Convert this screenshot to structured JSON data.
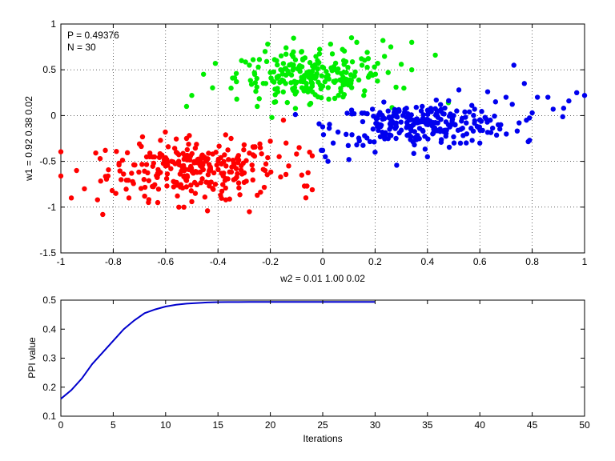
{
  "chart_data": [
    {
      "type": "scatter",
      "annotations": [
        "P = 0.49376",
        "N = 30"
      ],
      "xlabel": "w2 = 0.01  1.00  0.02",
      "ylabel": "w1 = 0.92  0.38  0.02",
      "xlim": [
        -1,
        1
      ],
      "ylim": [
        -1.5,
        1
      ],
      "xticks": [
        "-1",
        "-0.8",
        "-0.6",
        "-0.4",
        "-0.2",
        "0",
        "0.2",
        "0.4",
        "0.6",
        "0.8",
        "1"
      ],
      "yticks": [
        "-1.5",
        "-1",
        "-0.5",
        "0",
        "0.5",
        "1"
      ],
      "grid": true,
      "series": [
        {
          "color": "#ff0000",
          "center": [
            -0.5,
            -0.58
          ],
          "spread": [
            0.16,
            0.16
          ],
          "n": 230,
          "points": [
            [
              -1.0,
              -0.66
            ],
            [
              -0.96,
              -0.9
            ],
            [
              -0.94,
              -0.6
            ],
            [
              -0.91,
              -0.8
            ],
            [
              -0.86,
              -0.92
            ],
            [
              -0.85,
              -0.47
            ],
            [
              -0.84,
              -1.08
            ],
            [
              -0.82,
              -0.66
            ],
            [
              -0.79,
              -0.85
            ],
            [
              -0.77,
              -0.7
            ],
            [
              -0.74,
              -0.9
            ],
            [
              -0.73,
              -0.63
            ],
            [
              -0.7,
              -0.31
            ],
            [
              -0.68,
              -0.88
            ],
            [
              -0.66,
              -0.41
            ],
            [
              -0.63,
              -0.95
            ],
            [
              -0.6,
              -0.46
            ],
            [
              -0.57,
              -0.72
            ],
            [
              -0.53,
              -1.0
            ],
            [
              -0.52,
              -0.25
            ],
            [
              -0.5,
              -0.94
            ],
            [
              -0.47,
              -0.52
            ],
            [
              -0.45,
              -0.89
            ],
            [
              -0.44,
              -1.04
            ],
            [
              -0.42,
              -0.42
            ],
            [
              -0.39,
              -0.87
            ],
            [
              -0.37,
              -0.92
            ],
            [
              -0.35,
              -0.25
            ],
            [
              -0.33,
              -0.58
            ],
            [
              -0.32,
              -0.79
            ],
            [
              -0.3,
              -0.32
            ],
            [
              -0.28,
              -0.41
            ],
            [
              -0.27,
              -0.54
            ],
            [
              -0.25,
              -0.87
            ],
            [
              -0.24,
              -0.31
            ],
            [
              -0.22,
              -0.6
            ],
            [
              -0.21,
              -0.46
            ],
            [
              -0.2,
              -0.28
            ],
            [
              -0.28,
              -1.05
            ],
            [
              -0.3,
              -0.73
            ],
            [
              -0.15,
              -0.05
            ],
            [
              -0.14,
              -0.3
            ],
            [
              -0.13,
              -0.55
            ],
            [
              -0.1,
              -0.42
            ],
            [
              -0.09,
              -0.35
            ],
            [
              -0.08,
              -0.65
            ],
            [
              -0.07,
              -0.77
            ],
            [
              -0.06,
              -0.77
            ],
            [
              -0.05,
              -0.4
            ],
            [
              -0.04,
              -0.44
            ],
            [
              -0.04,
              -0.81
            ],
            [
              -0.63,
              -0.63
            ],
            [
              -0.58,
              -0.58
            ],
            [
              -0.55,
              -0.5
            ],
            [
              -0.48,
              -0.62
            ],
            [
              -0.43,
              -0.56
            ],
            [
              -0.38,
              -0.66
            ],
            [
              -0.36,
              -0.48
            ],
            [
              -0.52,
              -0.71
            ],
            [
              -0.6,
              -0.55
            ],
            [
              -0.46,
              -0.69
            ],
            [
              -0.41,
              -0.75
            ],
            [
              -0.34,
              -0.52
            ]
          ]
        },
        {
          "color": "#00ee00",
          "center": [
            -0.05,
            0.42
          ],
          "spread": [
            0.14,
            0.13
          ],
          "n": 200,
          "points": [
            [
              -0.52,
              0.1
            ],
            [
              -0.5,
              0.22
            ],
            [
              -0.41,
              0.57
            ],
            [
              -0.35,
              0.3
            ],
            [
              -0.33,
              0.46
            ],
            [
              -0.31,
              0.6
            ],
            [
              -0.28,
              0.55
            ],
            [
              -0.25,
              0.1
            ],
            [
              -0.22,
              0.7
            ],
            [
              -0.2,
              0.47
            ],
            [
              -0.18,
              0.15
            ],
            [
              -0.21,
              0.78
            ],
            [
              -0.15,
              0.38
            ],
            [
              -0.14,
              0.74
            ],
            [
              -0.12,
              0.56
            ],
            [
              -0.1,
              0.26
            ],
            [
              -0.08,
              0.7
            ],
            [
              -0.05,
              0.12
            ],
            [
              -0.04,
              0.35
            ],
            [
              0.0,
              0.32
            ],
            [
              0.03,
              0.78
            ],
            [
              0.06,
              0.22
            ],
            [
              0.08,
              0.6
            ],
            [
              0.11,
              0.85
            ],
            [
              0.13,
              0.8
            ],
            [
              0.15,
              0.55
            ],
            [
              0.17,
              0.69
            ],
            [
              0.19,
              0.44
            ],
            [
              0.21,
              0.57
            ],
            [
              0.23,
              0.82
            ],
            [
              0.26,
              0.75
            ],
            [
              0.28,
              0.31
            ],
            [
              0.31,
              0.3
            ],
            [
              0.34,
              0.5
            ],
            [
              0.34,
              0.8
            ],
            [
              0.43,
              0.66
            ],
            [
              0.48,
              0.14
            ],
            [
              0.3,
              0.56
            ],
            [
              0.25,
              0.47
            ],
            [
              0.16,
              0.27
            ],
            [
              -0.06,
              0.47
            ],
            [
              -0.09,
              0.53
            ],
            [
              0.02,
              0.44
            ],
            [
              0.05,
              0.38
            ],
            [
              -0.02,
              0.6
            ],
            [
              0.09,
              0.47
            ]
          ]
        },
        {
          "color": "#0000ee",
          "center": [
            0.38,
            -0.1
          ],
          "spread": [
            0.17,
            0.11
          ],
          "n": 230,
          "points": [
            [
              0.0,
              -0.38
            ],
            [
              0.01,
              -0.45
            ],
            [
              0.02,
              -0.5
            ],
            [
              0.04,
              -0.3
            ],
            [
              0.1,
              -0.48
            ],
            [
              0.13,
              -0.32
            ],
            [
              0.16,
              -0.22
            ],
            [
              0.2,
              -0.4
            ],
            [
              0.22,
              -0.1
            ],
            [
              0.25,
              0.05
            ],
            [
              0.28,
              -0.25
            ],
            [
              0.32,
              0.08
            ],
            [
              0.35,
              -0.32
            ],
            [
              0.38,
              0.1
            ],
            [
              0.4,
              -0.45
            ],
            [
              0.42,
              -0.2
            ],
            [
              0.45,
              0.12
            ],
            [
              0.48,
              -0.1
            ],
            [
              0.52,
              0.28
            ],
            [
              0.55,
              -0.2
            ],
            [
              0.58,
              0.07
            ],
            [
              0.6,
              -0.3
            ],
            [
              0.63,
              0.26
            ],
            [
              0.64,
              -0.05
            ],
            [
              0.66,
              0.15
            ],
            [
              0.68,
              -0.1
            ],
            [
              0.7,
              0.2
            ],
            [
              0.73,
              0.55
            ],
            [
              0.75,
              -0.08
            ],
            [
              0.77,
              0.35
            ],
            [
              0.79,
              -0.27
            ],
            [
              0.8,
              0.03
            ],
            [
              0.82,
              0.2
            ],
            [
              0.86,
              0.2
            ],
            [
              0.88,
              0.07
            ],
            [
              0.92,
              0.08
            ],
            [
              0.94,
              0.16
            ],
            [
              0.97,
              0.25
            ],
            [
              1.0,
              0.22
            ],
            [
              0.28,
              0.02
            ],
            [
              0.33,
              -0.05
            ],
            [
              0.37,
              -0.14
            ],
            [
              0.41,
              -0.06
            ],
            [
              0.44,
              -0.02
            ],
            [
              0.47,
              -0.16
            ],
            [
              0.5,
              0.0
            ],
            [
              0.53,
              -0.06
            ],
            [
              0.56,
              0.04
            ],
            [
              0.59,
              -0.12
            ],
            [
              0.62,
              -0.02
            ],
            [
              0.3,
              -0.16
            ],
            [
              0.26,
              -0.12
            ],
            [
              0.19,
              0.07
            ],
            [
              0.17,
              0.02
            ]
          ]
        }
      ]
    },
    {
      "type": "line",
      "xlabel": "Iterations",
      "ylabel": "PPI value",
      "xlim": [
        0,
        50
      ],
      "ylim": [
        0.1,
        0.5
      ],
      "xticks": [
        "0",
        "5",
        "10",
        "15",
        "20",
        "25",
        "30",
        "35",
        "40",
        "45",
        "50"
      ],
      "yticks": [
        "0.1",
        "0.2",
        "0.3",
        "0.4",
        "0.5"
      ],
      "grid": false,
      "series": [
        {
          "color": "#0000cc",
          "x": [
            0,
            1,
            2,
            3,
            4,
            5,
            6,
            7,
            8,
            9,
            10,
            11,
            12,
            13,
            14,
            15,
            16,
            17,
            18,
            19,
            20,
            21,
            22,
            23,
            24,
            25,
            26,
            27,
            28,
            29,
            30
          ],
          "y": [
            0.16,
            0.19,
            0.23,
            0.28,
            0.32,
            0.36,
            0.4,
            0.43,
            0.455,
            0.468,
            0.478,
            0.484,
            0.488,
            0.49,
            0.492,
            0.493,
            0.4933,
            0.4935,
            0.4936,
            0.4937,
            0.4937,
            0.4937,
            0.4937,
            0.4937,
            0.4937,
            0.4937,
            0.4937,
            0.4937,
            0.4937,
            0.4937,
            0.4938
          ]
        }
      ]
    }
  ]
}
